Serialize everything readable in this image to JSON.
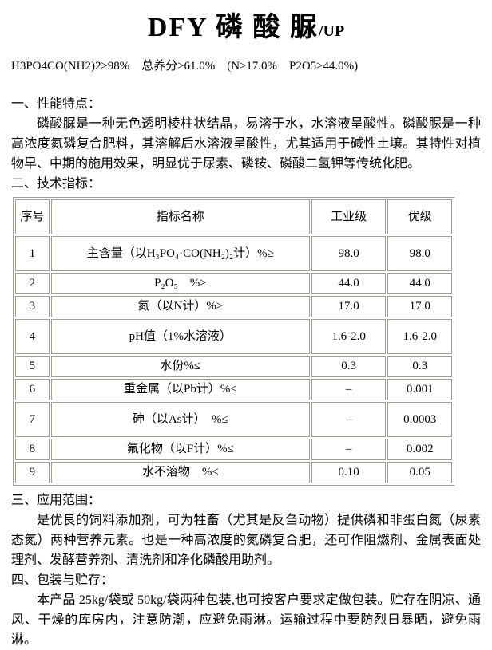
{
  "page": {
    "title_main": "DFY 磷 酸 脲",
    "title_suffix": "/UP",
    "spec_line": "H3PO4CO(NH2)2≥98%　总养分≥61.0%　(N≥17.0%　P2O5≥44.0%)"
  },
  "sections": {
    "features": {
      "heading": "一、性能特点：",
      "body": "磷酸脲是一种无色透明棱柱状结晶，易溶于水，水溶液呈酸性。磷酸脲是一种高浓度氮磷复合肥料，其溶解后水溶液呈酸性，尤其适用于碱性土壤。其特性对植物早、中期的施用效果，明显优于尿素、磷铵、磷酸二氢钾等传统化肥。"
    },
    "specs": {
      "heading": "二、技术指标："
    },
    "applications": {
      "heading": "三、应用范围：",
      "body": "是优良的饲料添加剂，可为牲畜（尤其是反刍动物）提供磷和非蛋白氮（尿素态氮）两种营养元素。也是一种高浓度的氮磷复合肥，还可作阻燃剂、金属表面处理剂、发酵营养剂、清洗剂和净化磷酸用助剂。"
    },
    "packaging": {
      "heading": "四、包装与贮存：",
      "body": "本产品 25kg/袋或 50kg/袋两种包装,也可按客户要求定做包装。贮存在阴凉、通风、干燥的库房内，注意防潮，应避免雨淋。运输过程中要防烈日暴晒，避免雨淋。"
    }
  },
  "table": {
    "headers": [
      "序号",
      "指标名称",
      "工业级",
      "优级"
    ],
    "rows": [
      [
        "1",
        "主含量（以H₃PO₄·CO(NH₂)₂计）%≥",
        "98.0",
        "98.0"
      ],
      [
        "2",
        "P₂O₅　%≥",
        "44.0",
        "44.0"
      ],
      [
        "3",
        "氮（以N计）%≥",
        "17.0",
        "17.0"
      ],
      [
        "4",
        "pH值（1%水溶液）",
        "1.6-2.0",
        "1.6-2.0"
      ],
      [
        "5",
        "水份%≤",
        "0.3",
        "0.3"
      ],
      [
        "6",
        "重金属（以Pb计）%≤",
        "–",
        "0.001"
      ],
      [
        "7",
        "砷（以As计）　%≤",
        "–",
        "0.0003"
      ],
      [
        "8",
        "氟化物（以F计）%≤",
        "–",
        "0.002"
      ],
      [
        "9",
        "水不溶物　%≤",
        "0.10",
        "0.05"
      ]
    ]
  },
  "colors": {
    "table_border": "#9f9f93",
    "text": "#000000",
    "background": "#ffffff"
  }
}
